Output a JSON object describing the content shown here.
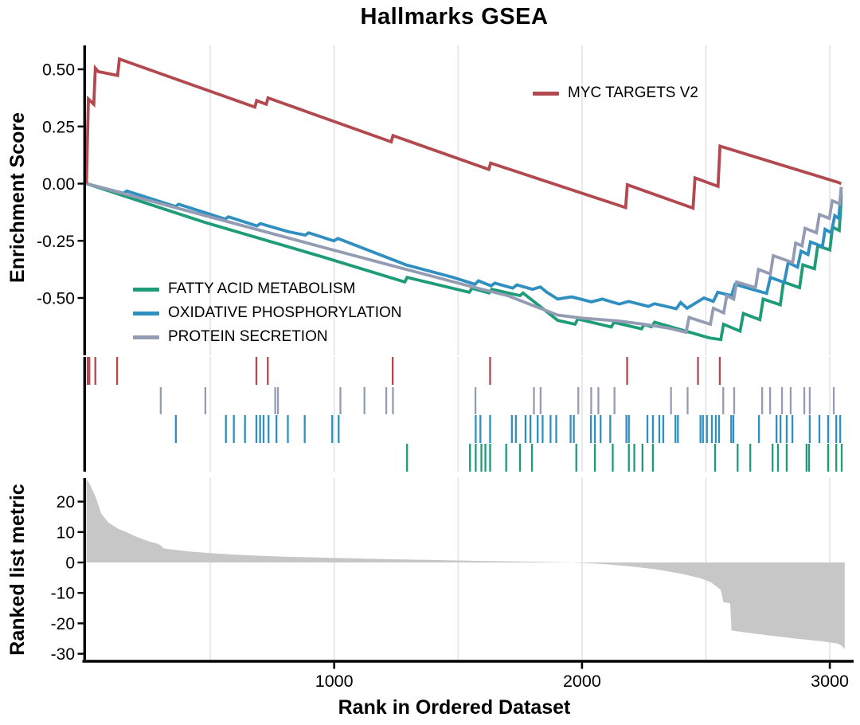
{
  "title": "Hallmarks GSEA",
  "xaxis": {
    "label": "Rank in Ordered Dataset"
  },
  "colors": {
    "myc_targets_v2": "#b2494f",
    "fatty_acid_metabolism": "#1e9c78",
    "oxidative_phosphorylation": "#2f8fc0",
    "protein_secretion": "#949cb3",
    "ranked_metric_fill": "#c7c7c7",
    "gridline": "#e8e8e8",
    "axis": "#000000"
  },
  "chart_data": [
    {
      "type": "line",
      "panel": "enrichment-score",
      "title": "Hallmarks GSEA",
      "ylabel": "Enrichment Score",
      "xlim": [
        0,
        3100
      ],
      "ylim": [
        -0.75,
        0.58
      ],
      "grid_x": [
        500,
        1000,
        1500,
        2000,
        2500,
        3000
      ],
      "legend_position": "myc top-right of panel; other three mid-left of panel",
      "yticks": [
        {
          "v": 0.5,
          "label": "0.50"
        },
        {
          "v": 0.25,
          "label": "0.25"
        },
        {
          "v": 0.0,
          "label": "0.00"
        },
        {
          "v": -0.25,
          "label": "-0.25"
        },
        {
          "v": -0.5,
          "label": "-0.50"
        }
      ],
      "series": [
        {
          "name": "MYC TARGETS V2",
          "color": "#b2494f",
          "points": [
            [
              0,
              0
            ],
            [
              8,
              0.37
            ],
            [
              30,
              0.347
            ],
            [
              36,
              0.505
            ],
            [
              48,
              0.49
            ],
            [
              126,
              0.473
            ],
            [
              133,
              0.545
            ],
            [
              680,
              0.335
            ],
            [
              687,
              0.363
            ],
            [
              726,
              0.347
            ],
            [
              733,
              0.375
            ],
            [
              1230,
              0.183
            ],
            [
              1237,
              0.21
            ],
            [
              1624,
              0.062
            ],
            [
              1631,
              0.09
            ],
            [
              2176,
              -0.105
            ],
            [
              2183,
              -0.005
            ],
            [
              2448,
              -0.107
            ],
            [
              2456,
              0.025
            ],
            [
              2549,
              -0.012
            ],
            [
              2557,
              0.164
            ],
            [
              3030,
              0.007
            ],
            [
              3046,
              0
            ]
          ]
        },
        {
          "name": "FATTY ACID METABOLISM",
          "color": "#1e9c78",
          "points": [
            [
              0,
              0
            ],
            [
              480,
              -0.17
            ],
            [
              943,
              -0.317
            ],
            [
              1285,
              -0.43
            ],
            [
              1294,
              -0.41
            ],
            [
              1545,
              -0.475
            ],
            [
              1556,
              -0.458
            ],
            [
              1625,
              -0.478
            ],
            [
              1636,
              -0.462
            ],
            [
              1750,
              -0.49
            ],
            [
              1762,
              -0.478
            ],
            [
              1902,
              -0.598
            ],
            [
              1972,
              -0.615
            ],
            [
              1983,
              -0.592
            ],
            [
              2118,
              -0.627
            ],
            [
              2129,
              -0.607
            ],
            [
              2240,
              -0.635
            ],
            [
              2251,
              -0.616
            ],
            [
              2280,
              -0.626
            ],
            [
              2293,
              -0.606
            ],
            [
              2515,
              -0.675
            ],
            [
              2560,
              -0.682
            ],
            [
              2571,
              -0.615
            ],
            [
              2638,
              -0.645
            ],
            [
              2651,
              -0.568
            ],
            [
              2718,
              -0.595
            ],
            [
              2731,
              -0.505
            ],
            [
              2800,
              -0.53
            ],
            [
              2813,
              -0.43
            ],
            [
              2878,
              -0.455
            ],
            [
              2891,
              -0.355
            ],
            [
              2938,
              -0.372
            ],
            [
              2951,
              -0.272
            ],
            [
              3000,
              -0.29
            ],
            [
              3011,
              -0.19
            ],
            [
              3038,
              -0.205
            ],
            [
              3044,
              -0.105
            ],
            [
              3046,
              -0.05
            ]
          ]
        },
        {
          "name": "OXIDATIVE PHOSPHORYLATION",
          "color": "#2f8fc0",
          "points": [
            [
              0,
              0
            ],
            [
              150,
              -0.042
            ],
            [
              163,
              -0.032
            ],
            [
              360,
              -0.1
            ],
            [
              372,
              -0.09
            ],
            [
              560,
              -0.155
            ],
            [
              573,
              -0.145
            ],
            [
              688,
              -0.185
            ],
            [
              702,
              -0.175
            ],
            [
              815,
              -0.21
            ],
            [
              883,
              -0.225
            ],
            [
              897,
              -0.215
            ],
            [
              998,
              -0.25
            ],
            [
              1015,
              -0.24
            ],
            [
              1290,
              -0.355
            ],
            [
              1480,
              -0.41
            ],
            [
              1568,
              -0.44
            ],
            [
              1582,
              -0.425
            ],
            [
              1633,
              -0.447
            ],
            [
              1648,
              -0.435
            ],
            [
              1720,
              -0.457
            ],
            [
              1737,
              -0.443
            ],
            [
              1800,
              -0.462
            ],
            [
              1832,
              -0.452
            ],
            [
              1858,
              -0.475
            ],
            [
              1902,
              -0.505
            ],
            [
              1958,
              -0.495
            ],
            [
              2038,
              -0.517
            ],
            [
              2082,
              -0.505
            ],
            [
              2150,
              -0.527
            ],
            [
              2188,
              -0.515
            ],
            [
              2268,
              -0.537
            ],
            [
              2292,
              -0.525
            ],
            [
              2380,
              -0.547
            ],
            [
              2398,
              -0.52
            ],
            [
              2424,
              -0.545
            ],
            [
              2492,
              -0.5
            ],
            [
              2530,
              -0.515
            ],
            [
              2548,
              -0.475
            ],
            [
              2603,
              -0.49
            ],
            [
              2618,
              -0.44
            ],
            [
              2680,
              -0.46
            ],
            [
              2745,
              -0.48
            ],
            [
              2760,
              -0.41
            ],
            [
              2816,
              -0.432
            ],
            [
              2832,
              -0.345
            ],
            [
              2870,
              -0.365
            ],
            [
              2884,
              -0.295
            ],
            [
              2912,
              -0.31
            ],
            [
              2922,
              -0.255
            ],
            [
              2970,
              -0.275
            ],
            [
              2981,
              -0.2
            ],
            [
              3006,
              -0.215
            ],
            [
              3020,
              -0.14
            ],
            [
              3036,
              -0.152
            ],
            [
              3042,
              -0.078
            ],
            [
              3044,
              -0.09
            ],
            [
              3046,
              -0.015
            ]
          ]
        },
        {
          "name": "PROTEIN SECRETION",
          "color": "#949cb3",
          "points": [
            [
              0,
              0
            ],
            [
              943,
              -0.275
            ],
            [
              1290,
              -0.375
            ],
            [
              1570,
              -0.455
            ],
            [
              1700,
              -0.49
            ],
            [
              1902,
              -0.575
            ],
            [
              2000,
              -0.588
            ],
            [
              2140,
              -0.6
            ],
            [
              2250,
              -0.615
            ],
            [
              2350,
              -0.632
            ],
            [
              2420,
              -0.65
            ],
            [
              2432,
              -0.585
            ],
            [
              2518,
              -0.615
            ],
            [
              2530,
              -0.545
            ],
            [
              2572,
              -0.565
            ],
            [
              2584,
              -0.49
            ],
            [
              2612,
              -0.505
            ],
            [
              2624,
              -0.43
            ],
            [
              2700,
              -0.455
            ],
            [
              2712,
              -0.375
            ],
            [
              2760,
              -0.395
            ],
            [
              2772,
              -0.315
            ],
            [
              2850,
              -0.345
            ],
            [
              2862,
              -0.26
            ],
            [
              2888,
              -0.272
            ],
            [
              2900,
              -0.195
            ],
            [
              2946,
              -0.215
            ],
            [
              2958,
              -0.135
            ],
            [
              2998,
              -0.152
            ],
            [
              3010,
              -0.075
            ],
            [
              3040,
              -0.088
            ],
            [
              3046,
              -0.015
            ]
          ]
        }
      ]
    },
    {
      "type": "scatter",
      "panel": "gene-position-rug",
      "note": "vertical tick marks: rank positions of gene-set members, one row per set (top to bottom)",
      "rows": [
        {
          "name": "MYC TARGETS V2",
          "color": "#b2494f",
          "ranks": [
            5,
            12,
            36,
            124,
            686,
            732,
            1236,
            1629,
            2182,
            2468,
            2556
          ]
        },
        {
          "name": "PROTEIN SECRETION",
          "color": "#949cb3",
          "ranks": [
            300,
            480,
            762,
            773,
            1025,
            1122,
            1210,
            1237,
            1570,
            1806,
            1833,
            1985,
            2037,
            2066,
            2131,
            2359,
            2426,
            2570,
            2614,
            2727,
            2759,
            2807,
            2842,
            2897,
            2919,
            3016
          ]
        },
        {
          "name": "OXIDATIVE PHOSPHORYLATION",
          "color": "#2f8fc0",
          "ranks": [
            361,
            563,
            595,
            640,
            686,
            701,
            715,
            735,
            767,
            813,
            881,
            992,
            1018,
            1571,
            1590,
            1629,
            1717,
            1733,
            1772,
            1792,
            1821,
            1841,
            1873,
            1896,
            1954,
            1967,
            2036,
            2052,
            2075,
            2114,
            2179,
            2189,
            2264,
            2286,
            2312,
            2328,
            2377,
            2387,
            2478,
            2488,
            2504,
            2524,
            2540,
            2553,
            2602,
            2611,
            2714,
            2785,
            2801,
            2826,
            2849,
            2919,
            2958,
            2993,
            3026,
            3042
          ]
        },
        {
          "name": "FATTY ACID METABOLISM",
          "color": "#1e9c78",
          "ranks": [
            1294,
            1548,
            1571,
            1594,
            1610,
            1629,
            1694,
            1750,
            1798,
            1977,
            2052,
            2124,
            2189,
            2211,
            2244,
            2286,
            2537,
            2628,
            2679,
            2769,
            2791,
            2826,
            2906,
            2916,
            2993,
            3026,
            3048
          ]
        }
      ]
    },
    {
      "type": "area",
      "panel": "ranked-list-metric",
      "ylabel": "Ranked list metric",
      "xlabel": "Rank in Ordered Dataset",
      "color": "#c7c7c7",
      "xlim": [
        0,
        3100
      ],
      "ylim": [
        -33,
        28
      ],
      "grid_x": [
        500,
        1000,
        1500,
        2000,
        2500,
        3000
      ],
      "yticks": [
        {
          "v": 20,
          "label": "20"
        },
        {
          "v": 10,
          "label": "10"
        },
        {
          "v": 0,
          "label": "0"
        },
        {
          "v": -10,
          "label": "-10"
        },
        {
          "v": -20,
          "label": "-20"
        },
        {
          "v": -30,
          "label": "-30"
        }
      ],
      "xticks": [
        {
          "v": 1000,
          "label": "1000"
        },
        {
          "v": 2000,
          "label": "2000"
        },
        {
          "v": 3000,
          "label": "3000"
        }
      ],
      "points": [
        [
          0,
          27.5
        ],
        [
          15,
          25.5
        ],
        [
          40,
          21
        ],
        [
          60,
          16
        ],
        [
          90,
          13
        ],
        [
          130,
          11
        ],
        [
          160,
          10
        ],
        [
          200,
          8.5
        ],
        [
          250,
          7
        ],
        [
          285,
          6.2
        ],
        [
          300,
          5.6
        ],
        [
          312,
          4.6
        ],
        [
          360,
          4.1
        ],
        [
          430,
          3.5
        ],
        [
          500,
          3.1
        ],
        [
          600,
          2.6
        ],
        [
          700,
          2.2
        ],
        [
          800,
          1.9
        ],
        [
          900,
          1.7
        ],
        [
          1000,
          1.5
        ],
        [
          1200,
          1.1
        ],
        [
          1400,
          0.8
        ],
        [
          1600,
          0.5
        ],
        [
          1800,
          0.25
        ],
        [
          1950,
          0.02
        ],
        [
          2000,
          -0.15
        ],
        [
          2100,
          -0.6
        ],
        [
          2200,
          -1.3
        ],
        [
          2300,
          -2.3
        ],
        [
          2400,
          -3.7
        ],
        [
          2480,
          -5.2
        ],
        [
          2520,
          -6.5
        ],
        [
          2545,
          -8
        ],
        [
          2560,
          -9
        ],
        [
          2570,
          -13
        ],
        [
          2598,
          -13.4
        ],
        [
          2603,
          -22.3
        ],
        [
          2660,
          -23
        ],
        [
          2760,
          -24
        ],
        [
          2860,
          -25
        ],
        [
          2960,
          -25.8
        ],
        [
          3030,
          -26.6
        ],
        [
          3050,
          -27.5
        ],
        [
          3060,
          -28.6
        ]
      ]
    }
  ]
}
